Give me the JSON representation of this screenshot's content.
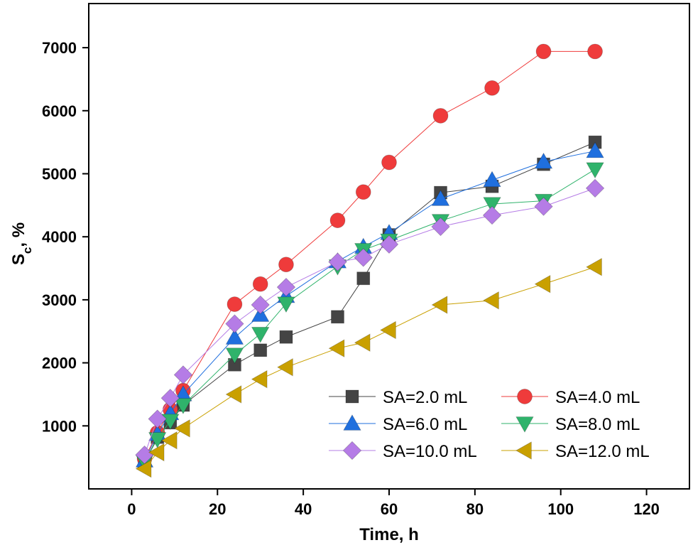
{
  "chart_data": {
    "type": "line",
    "xlabel": "Time, h",
    "ylabel_main": "S",
    "ylabel_sub": "c",
    "ylabel_suffix": ", %",
    "xlim": [
      -10,
      130
    ],
    "ylim": [
      0,
      7700
    ],
    "xticks": [
      0,
      20,
      40,
      60,
      80,
      100,
      120
    ],
    "yticks": [
      1000,
      2000,
      3000,
      4000,
      5000,
      6000,
      7000
    ],
    "grid": false,
    "legend_position": "bottom-right",
    "series": [
      {
        "name": "SA=2.0 mL",
        "color": "#444444",
        "marker": "square",
        "x": [
          3,
          6,
          9,
          12,
          24,
          30,
          36,
          48,
          54,
          60,
          72,
          84,
          96,
          108
        ],
        "y": [
          420,
          820,
          1050,
          1330,
          1970,
          2200,
          2410,
          2730,
          3340,
          4030,
          4700,
          4800,
          5150,
          5500
        ]
      },
      {
        "name": "SA=4.0 mL",
        "color": "#ef3b3b",
        "marker": "circle",
        "x": [
          3,
          6,
          9,
          12,
          24,
          30,
          36,
          48,
          54,
          60,
          72,
          84,
          96,
          108
        ],
        "y": [
          480,
          890,
          1260,
          1560,
          2930,
          3250,
          3560,
          4260,
          4710,
          5180,
          5920,
          6360,
          6940,
          6940
        ]
      },
      {
        "name": "SA=6.0 mL",
        "color": "#1f6fde",
        "marker": "triangle-up",
        "x": [
          3,
          6,
          9,
          12,
          24,
          30,
          36,
          48,
          54,
          60,
          72,
          84,
          96,
          108
        ],
        "y": [
          450,
          870,
          1200,
          1500,
          2400,
          2760,
          3060,
          3610,
          3840,
          4060,
          4600,
          4900,
          5190,
          5360
        ]
      },
      {
        "name": "SA=8.0 mL",
        "color": "#2fb36b",
        "marker": "triangle-down",
        "x": [
          3,
          6,
          9,
          12,
          24,
          30,
          36,
          48,
          54,
          60,
          72,
          84,
          96,
          108
        ],
        "y": [
          430,
          790,
          1080,
          1330,
          2130,
          2460,
          2940,
          3530,
          3790,
          3940,
          4250,
          4520,
          4570,
          5070
        ]
      },
      {
        "name": "SA=10.0 mL",
        "color": "#b57ce6",
        "marker": "diamond",
        "x": [
          3,
          6,
          9,
          12,
          24,
          30,
          36,
          48,
          54,
          60,
          72,
          84,
          96,
          108
        ],
        "y": [
          540,
          1110,
          1440,
          1810,
          2620,
          2920,
          3200,
          3600,
          3670,
          3880,
          4160,
          4340,
          4480,
          4770
        ]
      },
      {
        "name": "SA=12.0 mL",
        "color": "#c9a000",
        "marker": "triangle-left",
        "x": [
          3,
          6,
          9,
          12,
          24,
          30,
          36,
          48,
          54,
          60,
          72,
          84,
          96,
          108
        ],
        "y": [
          320,
          580,
          770,
          960,
          1500,
          1740,
          1930,
          2230,
          2320,
          2520,
          2920,
          2990,
          3250,
          3520
        ]
      }
    ]
  }
}
